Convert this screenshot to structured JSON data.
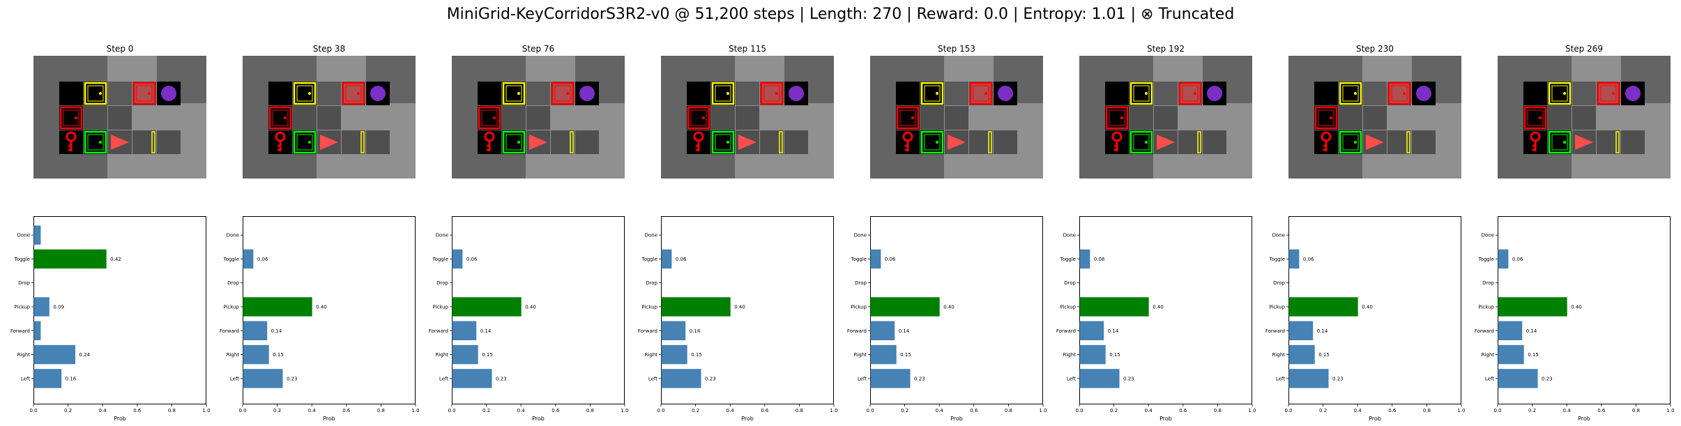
{
  "figure": {
    "title": "MiniGrid-KeyCorridorS3R2-v0 @ 51,200 steps | Length: 270 | Reward: 0.0 | Entropy: 1.01 | ⊗ Truncated"
  },
  "colors": {
    "bar_default": "#4682b4",
    "bar_selected": "#008000",
    "grid_wall": "#646464",
    "grid_floor": "#000000",
    "grid_visible": "#929292",
    "door_yellow": "#ffff00",
    "door_red": "#ff0000",
    "door_green": "#00ff00",
    "agent": "#ff4d4d",
    "ball_purple": "#7b2fc7",
    "key_red": "#ff0000"
  },
  "chart_data": [
    {
      "type": "bar",
      "orientation": "horizontal",
      "title": "Step 0",
      "categories": [
        "Left",
        "Right",
        "Forward",
        "Pickup",
        "Drop",
        "Toggle",
        "Done"
      ],
      "values": [
        0.16,
        0.24,
        0.04,
        0.09,
        0.0,
        0.42,
        0.04
      ],
      "value_labels": [
        "0.16",
        "0.24",
        "",
        "0.09",
        "",
        "0.42",
        ""
      ],
      "selected": "Toggle",
      "xlabel": "Prob",
      "xlim": [
        0,
        1
      ],
      "xticks": [
        "0.0",
        "0.2",
        "0.4",
        "0.6",
        "0.8",
        "1.0"
      ],
      "agent_column": 3
    },
    {
      "type": "bar",
      "orientation": "horizontal",
      "title": "Step 38",
      "categories": [
        "Left",
        "Right",
        "Forward",
        "Pickup",
        "Drop",
        "Toggle",
        "Done"
      ],
      "values": [
        0.23,
        0.15,
        0.14,
        0.4,
        0.0,
        0.06,
        0.0
      ],
      "value_labels": [
        "0.23",
        "0.15",
        "0.14",
        "0.40",
        "",
        "0.06",
        ""
      ],
      "selected": "Pickup",
      "xlabel": "Prob",
      "xlim": [
        0,
        1
      ],
      "xticks": [
        "0.0",
        "0.2",
        "0.4",
        "0.6",
        "0.8",
        "1.0"
      ],
      "agent_column": 3
    },
    {
      "type": "bar",
      "orientation": "horizontal",
      "title": "Step 76",
      "categories": [
        "Left",
        "Right",
        "Forward",
        "Pickup",
        "Drop",
        "Toggle",
        "Done"
      ],
      "values": [
        0.23,
        0.15,
        0.14,
        0.4,
        0.0,
        0.06,
        0.0
      ],
      "value_labels": [
        "0.23",
        "0.15",
        "0.14",
        "0.40",
        "",
        "0.06",
        ""
      ],
      "selected": "Pickup",
      "xlabel": "Prob",
      "xlim": [
        0,
        1
      ],
      "xticks": [
        "0.0",
        "0.2",
        "0.4",
        "0.6",
        "0.8",
        "1.0"
      ],
      "agent_column": 3
    },
    {
      "type": "bar",
      "orientation": "horizontal",
      "title": "Step 115",
      "categories": [
        "Left",
        "Right",
        "Forward",
        "Pickup",
        "Drop",
        "Toggle",
        "Done"
      ],
      "values": [
        0.23,
        0.15,
        0.14,
        0.4,
        0.0,
        0.06,
        0.0
      ],
      "value_labels": [
        "0.23",
        "0.15",
        "0.14",
        "0.40",
        "",
        "0.06",
        ""
      ],
      "selected": "Pickup",
      "xlabel": "Prob",
      "xlim": [
        0,
        1
      ],
      "xticks": [
        "0.0",
        "0.2",
        "0.4",
        "0.6",
        "0.8",
        "1.0"
      ],
      "agent_column": 3
    },
    {
      "type": "bar",
      "orientation": "horizontal",
      "title": "Step 153",
      "categories": [
        "Left",
        "Right",
        "Forward",
        "Pickup",
        "Drop",
        "Toggle",
        "Done"
      ],
      "values": [
        0.23,
        0.15,
        0.14,
        0.4,
        0.0,
        0.06,
        0.0
      ],
      "value_labels": [
        "0.23",
        "0.15",
        "0.14",
        "0.40",
        "",
        "0.06",
        ""
      ],
      "selected": "Pickup",
      "xlabel": "Prob",
      "xlim": [
        0,
        1
      ],
      "xticks": [
        "0.0",
        "0.2",
        "0.4",
        "0.6",
        "0.8",
        "1.0"
      ],
      "agent_column": 3
    },
    {
      "type": "bar",
      "orientation": "horizontal",
      "title": "Step 192",
      "categories": [
        "Left",
        "Right",
        "Forward",
        "Pickup",
        "Drop",
        "Toggle",
        "Done"
      ],
      "values": [
        0.23,
        0.15,
        0.14,
        0.4,
        0.0,
        0.06,
        0.0
      ],
      "value_labels": [
        "0.23",
        "0.15",
        "0.14",
        "0.40",
        "",
        "0.06",
        ""
      ],
      "selected": "Pickup",
      "xlabel": "Prob",
      "xlim": [
        0,
        1
      ],
      "xticks": [
        "0.0",
        "0.2",
        "0.4",
        "0.6",
        "0.8",
        "1.0"
      ],
      "agent_column": 3
    },
    {
      "type": "bar",
      "orientation": "horizontal",
      "title": "Step 230",
      "categories": [
        "Left",
        "Right",
        "Forward",
        "Pickup",
        "Drop",
        "Toggle",
        "Done"
      ],
      "values": [
        0.23,
        0.15,
        0.14,
        0.4,
        0.0,
        0.06,
        0.0
      ],
      "value_labels": [
        "0.23",
        "0.15",
        "0.14",
        "0.40",
        "",
        "0.06",
        ""
      ],
      "selected": "Pickup",
      "xlabel": "Prob",
      "xlim": [
        0,
        1
      ],
      "xticks": [
        "0.0",
        "0.2",
        "0.4",
        "0.6",
        "0.8",
        "1.0"
      ],
      "agent_column": 3
    },
    {
      "type": "bar",
      "orientation": "horizontal",
      "title": "Step 269",
      "categories": [
        "Left",
        "Right",
        "Forward",
        "Pickup",
        "Drop",
        "Toggle",
        "Done"
      ],
      "values": [
        0.23,
        0.15,
        0.14,
        0.4,
        0.0,
        0.06,
        0.0
      ],
      "value_labels": [
        "0.23",
        "0.15",
        "0.14",
        "0.40",
        "",
        "0.06",
        ""
      ],
      "selected": "Pickup",
      "xlabel": "Prob",
      "xlim": [
        0,
        1
      ],
      "xticks": [
        "0.0",
        "0.2",
        "0.4",
        "0.6",
        "0.8",
        "1.0"
      ],
      "agent_column": 3
    }
  ]
}
